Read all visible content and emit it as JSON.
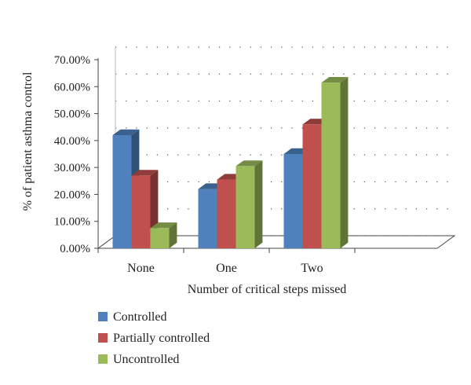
{
  "chart_data": {
    "type": "bar",
    "categories": [
      "None",
      "One",
      "Two"
    ],
    "series": [
      {
        "name": "Controlled",
        "values": [
          42.0,
          22.0,
          35.0
        ],
        "color": "#4F81BD"
      },
      {
        "name": "Partially controlled",
        "values": [
          27.0,
          25.5,
          46.0
        ],
        "color": "#C0504D"
      },
      {
        "name": "Uncontrolled",
        "values": [
          7.5,
          30.5,
          61.5
        ],
        "color": "#9BBB59"
      }
    ],
    "title": "",
    "xlabel": "Number of critical steps missed",
    "ylabel": "% of patient asthma control",
    "ylim": [
      0,
      70
    ],
    "yticks": [
      "0.00%",
      "10.00%",
      "20.00%",
      "30.00%",
      "40.00%",
      "50.00%",
      "60.00%",
      "70.00%"
    ],
    "grid": "dotted horizontal",
    "legend_position": "bottom-left",
    "style": "3d-clustered-column"
  }
}
